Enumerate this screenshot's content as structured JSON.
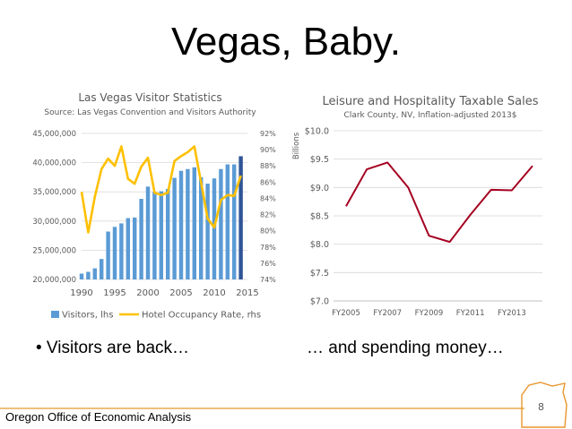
{
  "slide": {
    "title": "Vegas, Baby.",
    "bullet_left": "• Visitors are back…",
    "bullet_right": "… and spending money…",
    "footer": "Oregon Office of Economic Analysis",
    "page_number": "8",
    "colors": {
      "oregon_outline": "#E8962B",
      "footer_line": "#E8962B"
    }
  },
  "chart_data": [
    {
      "type": "bar",
      "title": "Las Vegas Visitor Statistics",
      "subtitle": "Source: Las Vegas Convention and Visitors Authority",
      "x": [
        1990,
        1991,
        1992,
        1993,
        1994,
        1995,
        1996,
        1997,
        1998,
        1999,
        2000,
        2001,
        2002,
        2003,
        2004,
        2005,
        2006,
        2007,
        2008,
        2009,
        2010,
        2011,
        2012,
        2013,
        2014
      ],
      "x_ticks": [
        "1990",
        "1995",
        "2000",
        "2005",
        "2010",
        "2015"
      ],
      "ylim": [
        20000000,
        45000000
      ],
      "y_ticks": [
        "20,000,000",
        "25,000,000",
        "30,000,000",
        "35,000,000",
        "40,000,000",
        "45,000,000"
      ],
      "y2lim": [
        74,
        92
      ],
      "y2_ticks": [
        "74%",
        "76%",
        "78%",
        "80%",
        "82%",
        "84%",
        "86%",
        "88%",
        "90%",
        "92%"
      ],
      "legend_position": "bottom",
      "series": [
        {
          "name": "Visitors, lhs",
          "type": "bar",
          "axis": "left",
          "color": "#5B9BD5",
          "highlight_color": "#2F5597",
          "values": [
            21000000,
            21300000,
            21900000,
            23500000,
            28200000,
            29000000,
            29600000,
            30500000,
            30600000,
            33800000,
            35900000,
            35000000,
            35100000,
            35500000,
            37400000,
            38600000,
            38900000,
            39200000,
            37500000,
            36400000,
            37300000,
            38900000,
            39700000,
            39700000,
            41100000
          ]
        },
        {
          "name": "Hotel Occupancy Rate, rhs",
          "type": "line",
          "axis": "right",
          "color": "#FFC000",
          "values": [
            84.8,
            79.8,
            84.2,
            87.6,
            88.9,
            88.0,
            90.4,
            86.4,
            85.8,
            87.9,
            89.0,
            84.7,
            84.4,
            84.7,
            88.6,
            89.2,
            89.7,
            90.4,
            86.0,
            81.5,
            80.4,
            83.8,
            84.4,
            84.3,
            86.8
          ]
        }
      ]
    },
    {
      "type": "line",
      "title": "Leisure and Hospitality Taxable Sales",
      "subtitle": "Clark County, NV, Inflation-adjusted 2013$",
      "ylabel": "Billions",
      "x": [
        "FY2005",
        "FY2006",
        "FY2007",
        "FY2008",
        "FY2009",
        "FY2010",
        "FY2011",
        "FY2012",
        "FY2013",
        "FY2014"
      ],
      "x_ticks": [
        "FY2005",
        "FY2007",
        "FY2009",
        "FY2011",
        "FY2013"
      ],
      "ylim": [
        7.0,
        10.0
      ],
      "y_ticks": [
        "$7.0",
        "$7.5",
        "$8.0",
        "$8.5",
        "$9.0",
        "$9.5",
        "$10.0"
      ],
      "series": [
        {
          "name": "",
          "color": "#A50021",
          "values": [
            8.67,
            9.32,
            9.44,
            9.0,
            8.15,
            8.04,
            8.52,
            8.96,
            8.95,
            9.38
          ]
        }
      ]
    }
  ]
}
